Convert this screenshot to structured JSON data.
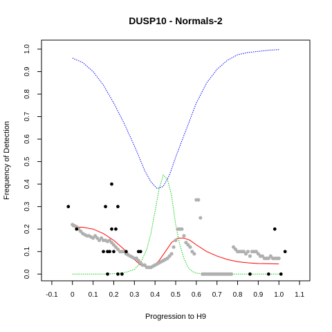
{
  "chart_data": {
    "type": "scatter",
    "title": "DUSP10 - Normals-2",
    "xlabel": "Progression to H9",
    "ylabel": "Frequency of Detection",
    "xlim": [
      -0.15,
      1.15
    ],
    "ylim": [
      -0.03,
      1.04
    ],
    "x_ticks": [
      "-0.1",
      "0",
      "0.1",
      "0.2",
      "0.3",
      "0.4",
      "0.5",
      "0.6",
      "0.7",
      "0.8",
      "0.9",
      "1.0",
      "1.1"
    ],
    "y_ticks": [
      "0.0",
      "0.1",
      "0.2",
      "0.3",
      "0.4",
      "0.5",
      "0.6",
      "0.7",
      "0.8",
      "0.9",
      "1.0"
    ],
    "grid": false,
    "colors": {
      "gray_points": "#b0b0b0",
      "black_points": "#000000",
      "red_curve": "#ff0000",
      "green_curve": "#00cc00",
      "blue_curve": "#0000ff"
    },
    "series": [
      {
        "kind": "gray_points",
        "points": [
          [
            0.0,
            0.22
          ],
          [
            0.01,
            0.215
          ],
          [
            0.02,
            0.21
          ],
          [
            0.03,
            0.2
          ],
          [
            0.04,
            0.19
          ],
          [
            0.05,
            0.18
          ],
          [
            0.06,
            0.175
          ],
          [
            0.07,
            0.17
          ],
          [
            0.08,
            0.17
          ],
          [
            0.09,
            0.165
          ],
          [
            0.1,
            0.16
          ],
          [
            0.11,
            0.17
          ],
          [
            0.12,
            0.16
          ],
          [
            0.13,
            0.15
          ],
          [
            0.14,
            0.16
          ],
          [
            0.15,
            0.15
          ],
          [
            0.16,
            0.15
          ],
          [
            0.17,
            0.145
          ],
          [
            0.18,
            0.15
          ],
          [
            0.19,
            0.14
          ],
          [
            0.2,
            0.13
          ],
          [
            0.21,
            0.12
          ],
          [
            0.22,
            0.11
          ],
          [
            0.23,
            0.1
          ],
          [
            0.24,
            0.1
          ],
          [
            0.25,
            0.1
          ],
          [
            0.26,
            0.09
          ],
          [
            0.27,
            0.085
          ],
          [
            0.28,
            0.08
          ],
          [
            0.29,
            0.075
          ],
          [
            0.3,
            0.07
          ],
          [
            0.31,
            0.07
          ],
          [
            0.32,
            0.06
          ],
          [
            0.33,
            0.05
          ],
          [
            0.34,
            0.04
          ],
          [
            0.35,
            0.04
          ],
          [
            0.36,
            0.03
          ],
          [
            0.37,
            0.03
          ],
          [
            0.38,
            0.03
          ],
          [
            0.39,
            0.035
          ],
          [
            0.4,
            0.04
          ],
          [
            0.41,
            0.045
          ],
          [
            0.42,
            0.05
          ],
          [
            0.43,
            0.055
          ],
          [
            0.44,
            0.06
          ],
          [
            0.45,
            0.065
          ],
          [
            0.46,
            0.07
          ],
          [
            0.47,
            0.08
          ],
          [
            0.48,
            0.09
          ],
          [
            0.49,
            0.12
          ],
          [
            0.5,
            0.15
          ],
          [
            0.51,
            0.2
          ],
          [
            0.52,
            0.2
          ],
          [
            0.53,
            0.2
          ],
          [
            0.54,
            0.17
          ],
          [
            0.55,
            0.14
          ],
          [
            0.56,
            0.13
          ],
          [
            0.57,
            0.12
          ],
          [
            0.58,
            0.1
          ],
          [
            0.59,
            0.09
          ],
          [
            0.6,
            0.33
          ],
          [
            0.61,
            0.33
          ],
          [
            0.62,
            0.25
          ],
          [
            0.63,
            0.0
          ],
          [
            0.64,
            0.0
          ],
          [
            0.65,
            0.0
          ],
          [
            0.66,
            0.0
          ],
          [
            0.67,
            0.0
          ],
          [
            0.68,
            0.0
          ],
          [
            0.69,
            0.0
          ],
          [
            0.7,
            0.0
          ],
          [
            0.71,
            0.0
          ],
          [
            0.72,
            0.0
          ],
          [
            0.73,
            0.0
          ],
          [
            0.74,
            0.0
          ],
          [
            0.75,
            0.0
          ],
          [
            0.76,
            0.0
          ],
          [
            0.77,
            0.0
          ],
          [
            0.78,
            0.12
          ],
          [
            0.79,
            0.11
          ],
          [
            0.8,
            0.1
          ],
          [
            0.81,
            0.1
          ],
          [
            0.82,
            0.1
          ],
          [
            0.83,
            0.1
          ],
          [
            0.84,
            0.09
          ],
          [
            0.85,
            0.1
          ],
          [
            0.86,
            0.08
          ],
          [
            0.87,
            0.1
          ],
          [
            0.88,
            0.1
          ],
          [
            0.89,
            0.1
          ],
          [
            0.9,
            0.09
          ],
          [
            0.91,
            0.08
          ],
          [
            0.92,
            0.08
          ],
          [
            0.93,
            0.07
          ],
          [
            0.94,
            0.07
          ],
          [
            0.95,
            0.07
          ],
          [
            0.96,
            0.08
          ],
          [
            0.97,
            0.07
          ],
          [
            0.98,
            0.07
          ],
          [
            0.99,
            0.07
          ],
          [
            1.0,
            0.07
          ]
        ]
      },
      {
        "kind": "black_points",
        "points": [
          [
            -0.02,
            0.3
          ],
          [
            0.02,
            0.2
          ],
          [
            0.15,
            0.1
          ],
          [
            0.16,
            0.3
          ],
          [
            0.17,
            0.1
          ],
          [
            0.18,
            0.1
          ],
          [
            0.19,
            0.2
          ],
          [
            0.19,
            0.4
          ],
          [
            0.2,
            0.1
          ],
          [
            0.21,
            0.2
          ],
          [
            0.22,
            0.3
          ],
          [
            0.17,
            0.0
          ],
          [
            0.22,
            0.0
          ],
          [
            0.24,
            0.0
          ],
          [
            0.26,
            0.1
          ],
          [
            0.32,
            0.1
          ],
          [
            0.33,
            0.1
          ],
          [
            0.86,
            0.0
          ],
          [
            0.95,
            0.0
          ],
          [
            0.98,
            0.2
          ],
          [
            1.01,
            0.0
          ],
          [
            1.03,
            0.1
          ]
        ]
      },
      {
        "kind": "red_curve",
        "points": [
          [
            0.0,
            0.21
          ],
          [
            0.05,
            0.208
          ],
          [
            0.1,
            0.2
          ],
          [
            0.15,
            0.18
          ],
          [
            0.2,
            0.15
          ],
          [
            0.25,
            0.11
          ],
          [
            0.3,
            0.065
          ],
          [
            0.33,
            0.04
          ],
          [
            0.36,
            0.03
          ],
          [
            0.39,
            0.035
          ],
          [
            0.42,
            0.06
          ],
          [
            0.45,
            0.1
          ],
          [
            0.48,
            0.14
          ],
          [
            0.51,
            0.16
          ],
          [
            0.54,
            0.16
          ],
          [
            0.57,
            0.15
          ],
          [
            0.6,
            0.13
          ],
          [
            0.65,
            0.1
          ],
          [
            0.7,
            0.08
          ],
          [
            0.75,
            0.065
          ],
          [
            0.8,
            0.055
          ],
          [
            0.85,
            0.05
          ],
          [
            0.9,
            0.047
          ],
          [
            0.95,
            0.046
          ],
          [
            1.0,
            0.045
          ]
        ]
      },
      {
        "kind": "green_curve",
        "points": [
          [
            0.0,
            0.0
          ],
          [
            0.15,
            0.0
          ],
          [
            0.2,
            0.002
          ],
          [
            0.25,
            0.006
          ],
          [
            0.3,
            0.02
          ],
          [
            0.33,
            0.05
          ],
          [
            0.36,
            0.11
          ],
          [
            0.38,
            0.18
          ],
          [
            0.4,
            0.28
          ],
          [
            0.42,
            0.38
          ],
          [
            0.44,
            0.44
          ],
          [
            0.46,
            0.42
          ],
          [
            0.48,
            0.35
          ],
          [
            0.5,
            0.22
          ],
          [
            0.52,
            0.13
          ],
          [
            0.54,
            0.07
          ],
          [
            0.56,
            0.03
          ],
          [
            0.58,
            0.012
          ],
          [
            0.6,
            0.004
          ],
          [
            0.65,
            0.0
          ],
          [
            1.0,
            0.0
          ]
        ]
      },
      {
        "kind": "blue_curve",
        "points": [
          [
            0.0,
            0.96
          ],
          [
            0.05,
            0.94
          ],
          [
            0.1,
            0.9
          ],
          [
            0.15,
            0.84
          ],
          [
            0.2,
            0.76
          ],
          [
            0.25,
            0.67
          ],
          [
            0.3,
            0.57
          ],
          [
            0.35,
            0.46
          ],
          [
            0.38,
            0.41
          ],
          [
            0.41,
            0.38
          ],
          [
            0.44,
            0.39
          ],
          [
            0.47,
            0.44
          ],
          [
            0.5,
            0.52
          ],
          [
            0.55,
            0.64
          ],
          [
            0.6,
            0.76
          ],
          [
            0.65,
            0.85
          ],
          [
            0.7,
            0.91
          ],
          [
            0.75,
            0.95
          ],
          [
            0.8,
            0.975
          ],
          [
            0.85,
            0.985
          ],
          [
            0.9,
            0.99
          ],
          [
            0.95,
            0.995
          ],
          [
            1.0,
            0.998
          ]
        ]
      }
    ]
  }
}
